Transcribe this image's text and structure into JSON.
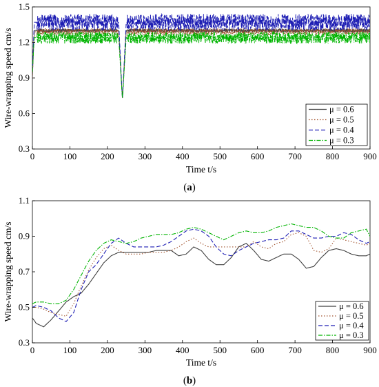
{
  "chart_data": [
    {
      "type": "line",
      "panel_label": "(a)",
      "panel_letter": "a",
      "xlabel": "Time t/s",
      "ylabel": "Wire-wrapping speed cm/s",
      "xlim": [
        0,
        900
      ],
      "ylim": [
        0.3,
        1.5
      ],
      "xticks": [
        0,
        100,
        200,
        300,
        400,
        500,
        600,
        700,
        800,
        900
      ],
      "yticks": [
        0.3,
        0.6,
        0.9,
        1.2,
        1.5
      ],
      "ytick_labels": [
        "0.3",
        "0.6",
        "0.9",
        "1.2",
        "1.5"
      ],
      "grid": false,
      "legend_position": "bottom-right",
      "series": [
        {
          "name": "μ = 0.6",
          "color": "#404040",
          "dash": "solid",
          "mean": 1.3,
          "amplitude": 0.015,
          "oscillating": true,
          "x": [
            0,
            5,
            10,
            230,
            240,
            250,
            900
          ],
          "y": [
            0.9,
            1.3,
            1.3,
            1.3,
            0.72,
            1.3,
            1.3
          ]
        },
        {
          "name": "μ = 0.5",
          "color": "#a0522d",
          "dash": "dot",
          "mean": 1.29,
          "amplitude": 0.03,
          "oscillating": true,
          "x": [
            0,
            5,
            10,
            230,
            240,
            250,
            900
          ],
          "y": [
            0.9,
            1.29,
            1.29,
            1.29,
            0.72,
            1.29,
            1.29
          ]
        },
        {
          "name": "μ = 0.4",
          "color": "#1f1fb4",
          "dash": "dash",
          "mean": 1.37,
          "amplitude": 0.07,
          "oscillating": true,
          "x": [
            0,
            5,
            10,
            230,
            240,
            250,
            900
          ],
          "y": [
            0.95,
            1.37,
            1.37,
            1.37,
            0.72,
            1.37,
            1.37
          ]
        },
        {
          "name": "μ = 0.3",
          "color": "#00b400",
          "dash": "dashdot",
          "mean": 1.24,
          "amplitude": 0.05,
          "oscillating": true,
          "x": [
            0,
            5,
            10,
            230,
            240,
            250,
            900
          ],
          "y": [
            0.95,
            1.24,
            1.24,
            1.24,
            0.72,
            1.24,
            1.24
          ]
        }
      ]
    },
    {
      "type": "line",
      "panel_label": "(b)",
      "panel_letter": "b",
      "xlabel": "Time t/s",
      "ylabel": "Wire-wrapping speed cm/s",
      "xlim": [
        0,
        900
      ],
      "ylim": [
        0.3,
        1.1
      ],
      "xticks": [
        0,
        100,
        200,
        300,
        400,
        500,
        600,
        700,
        800,
        900
      ],
      "yticks": [
        0.3,
        0.5,
        0.7,
        0.9,
        1.1
      ],
      "ytick_labels": [
        "0.3",
        "0.5",
        "0.7",
        "0.9",
        "1.1"
      ],
      "grid": false,
      "legend_position": "bottom-right",
      "series": [
        {
          "name": "μ = 0.6",
          "color": "#404040",
          "dash": "solid",
          "oscillating": false,
          "x": [
            0,
            10,
            30,
            50,
            70,
            90,
            110,
            130,
            150,
            170,
            190,
            210,
            230,
            250,
            270,
            290,
            310,
            330,
            350,
            370,
            390,
            410,
            430,
            450,
            470,
            490,
            510,
            530,
            550,
            570,
            590,
            610,
            630,
            650,
            670,
            690,
            710,
            730,
            750,
            770,
            790,
            810,
            830,
            850,
            870,
            890,
            900
          ],
          "y": [
            0.44,
            0.41,
            0.39,
            0.43,
            0.48,
            0.53,
            0.56,
            0.58,
            0.63,
            0.69,
            0.75,
            0.79,
            0.81,
            0.81,
            0.81,
            0.81,
            0.81,
            0.82,
            0.82,
            0.82,
            0.79,
            0.8,
            0.84,
            0.82,
            0.77,
            0.74,
            0.74,
            0.78,
            0.84,
            0.86,
            0.82,
            0.77,
            0.76,
            0.78,
            0.8,
            0.8,
            0.77,
            0.72,
            0.73,
            0.78,
            0.82,
            0.83,
            0.82,
            0.8,
            0.79,
            0.79,
            0.8
          ]
        },
        {
          "name": "μ = 0.5",
          "color": "#a0522d",
          "dash": "dot",
          "oscillating": false,
          "x": [
            0,
            10,
            30,
            50,
            70,
            90,
            110,
            130,
            150,
            170,
            190,
            210,
            230,
            250,
            270,
            290,
            310,
            330,
            350,
            370,
            390,
            410,
            430,
            450,
            470,
            490,
            510,
            530,
            550,
            570,
            590,
            610,
            630,
            650,
            670,
            690,
            710,
            730,
            750,
            770,
            790,
            810,
            830,
            850,
            870,
            890,
            900
          ],
          "y": [
            0.5,
            0.5,
            0.49,
            0.47,
            0.46,
            0.45,
            0.52,
            0.62,
            0.71,
            0.78,
            0.83,
            0.85,
            0.82,
            0.8,
            0.8,
            0.8,
            0.81,
            0.81,
            0.81,
            0.82,
            0.84,
            0.87,
            0.89,
            0.86,
            0.84,
            0.84,
            0.84,
            0.84,
            0.84,
            0.84,
            0.87,
            0.84,
            0.83,
            0.86,
            0.87,
            0.91,
            0.92,
            0.9,
            0.82,
            0.81,
            0.83,
            0.89,
            0.88,
            0.87,
            0.86,
            0.85,
            0.86
          ]
        },
        {
          "name": "μ = 0.4",
          "color": "#1f1fb4",
          "dash": "dash",
          "oscillating": false,
          "x": [
            0,
            10,
            30,
            50,
            70,
            90,
            110,
            130,
            150,
            170,
            190,
            210,
            230,
            250,
            270,
            290,
            310,
            330,
            350,
            370,
            390,
            410,
            430,
            450,
            470,
            490,
            510,
            530,
            550,
            570,
            590,
            610,
            630,
            650,
            670,
            690,
            710,
            730,
            750,
            770,
            790,
            810,
            830,
            850,
            870,
            890,
            900
          ],
          "y": [
            0.5,
            0.51,
            0.5,
            0.48,
            0.44,
            0.42,
            0.47,
            0.6,
            0.7,
            0.74,
            0.8,
            0.86,
            0.89,
            0.86,
            0.84,
            0.84,
            0.84,
            0.84,
            0.85,
            0.87,
            0.9,
            0.93,
            0.94,
            0.93,
            0.9,
            0.84,
            0.8,
            0.79,
            0.82,
            0.84,
            0.86,
            0.87,
            0.88,
            0.88,
            0.89,
            0.93,
            0.93,
            0.91,
            0.89,
            0.89,
            0.9,
            0.9,
            0.92,
            0.91,
            0.88,
            0.86,
            0.87
          ]
        },
        {
          "name": "μ = 0.3",
          "color": "#00b400",
          "dash": "dashdot",
          "oscillating": false,
          "x": [
            0,
            10,
            30,
            50,
            70,
            90,
            110,
            130,
            150,
            170,
            190,
            210,
            230,
            250,
            270,
            290,
            310,
            330,
            350,
            370,
            390,
            410,
            430,
            450,
            470,
            490,
            510,
            530,
            550,
            570,
            590,
            610,
            630,
            650,
            670,
            690,
            710,
            730,
            750,
            770,
            790,
            810,
            830,
            850,
            870,
            890,
            900
          ],
          "y": [
            0.52,
            0.53,
            0.53,
            0.52,
            0.52,
            0.54,
            0.6,
            0.68,
            0.76,
            0.82,
            0.86,
            0.88,
            0.87,
            0.86,
            0.87,
            0.89,
            0.9,
            0.91,
            0.91,
            0.91,
            0.92,
            0.94,
            0.95,
            0.94,
            0.92,
            0.9,
            0.88,
            0.9,
            0.92,
            0.93,
            0.92,
            0.92,
            0.93,
            0.95,
            0.96,
            0.97,
            0.96,
            0.95,
            0.95,
            0.93,
            0.9,
            0.89,
            0.89,
            0.92,
            0.93,
            0.94,
            0.9
          ]
        }
      ]
    }
  ]
}
